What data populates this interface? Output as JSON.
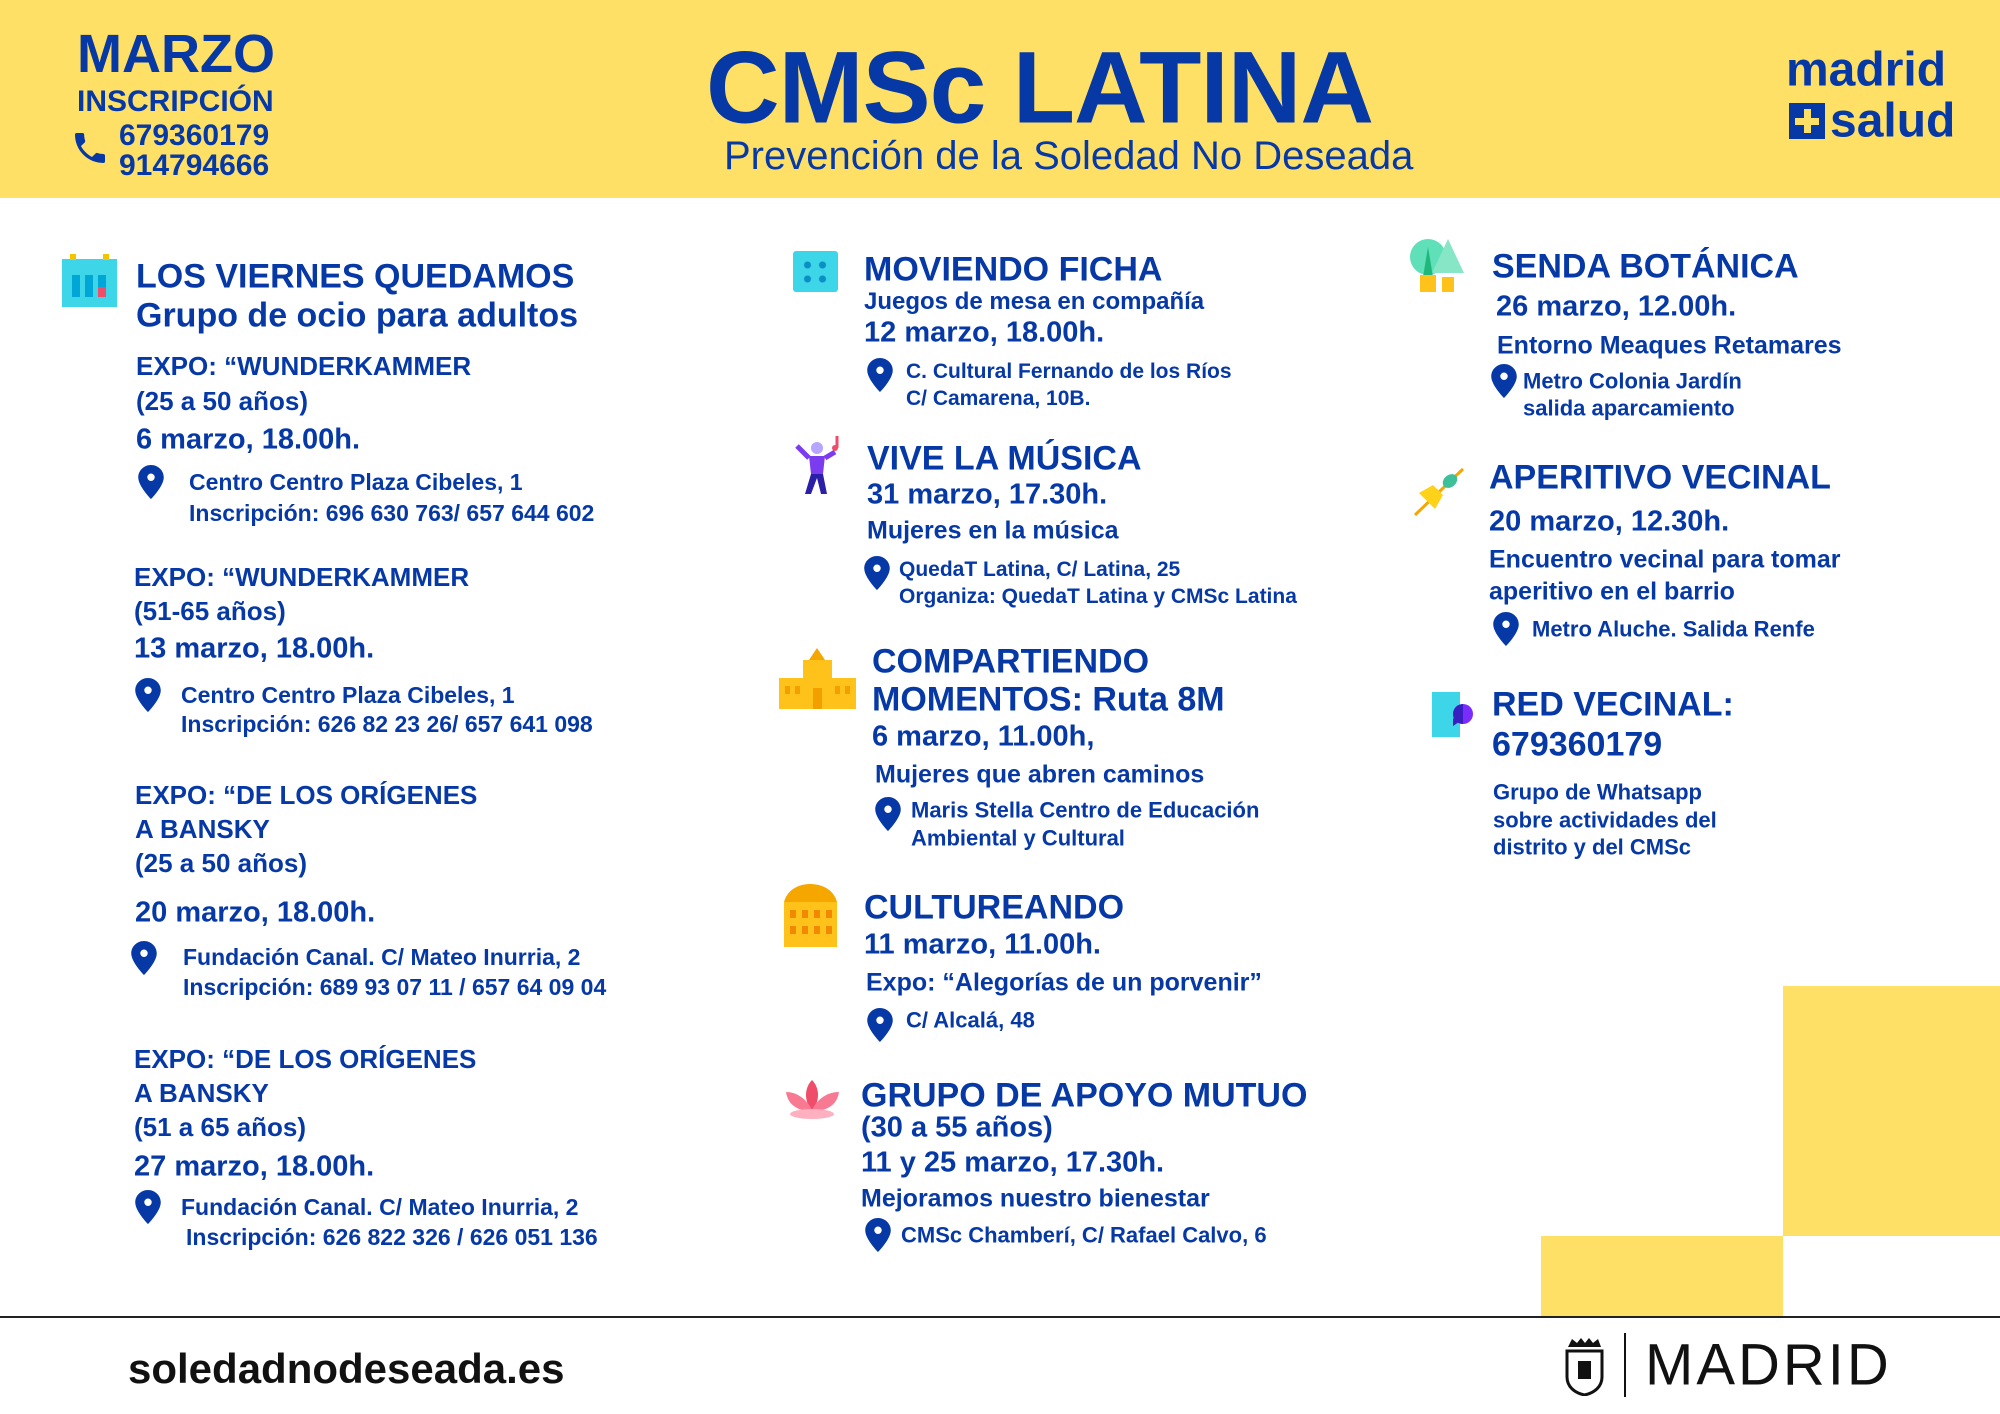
{
  "header": {
    "month": "MARZO",
    "inscription": "INSCRIPCIÓN",
    "phone1": "679360179",
    "phone2": "914794666",
    "title": "CMSc LATINA",
    "subtitle": "Prevención de la Soledad No Deseada",
    "logo_line1": "madrid",
    "logo_line2": "salud"
  },
  "colors": {
    "yellow": "#FFE066",
    "blue": "#0638A6"
  },
  "col1": {
    "title1": "LOS VIERNES QUEDAMOS",
    "title2": "Grupo de ocio para adultos",
    "events": [
      {
        "l1": "EXPO: “WUNDERKAMMER",
        "l2": "(25 a 50 años)",
        "date": "6 marzo, 18.00h.",
        "addr": "Centro Centro Plaza Cibeles, 1",
        "insc": "Inscripción: 696 630 763/ 657 644 602"
      },
      {
        "l1": "EXPO: “WUNDERKAMMER",
        "l2": "(51-65 años)",
        "date": "13 marzo, 18.00h.",
        "addr": "Centro Centro Plaza Cibeles, 1",
        "insc": "Inscripción: 626 82 23 26/ 657 641 098"
      },
      {
        "l1": "EXPO: “DE LOS ORÍGENES",
        "l2": "A BANSKY",
        "l3": "(25 a 50 años)",
        "date": "20 marzo, 18.00h.",
        "addr": "Fundación Canal. C/ Mateo Inurria, 2",
        "insc": "Inscripción: 689 93 07 11 / 657 64 09 04"
      },
      {
        "l1": "EXPO: “DE LOS ORÍGENES",
        "l2": "A BANSKY",
        "l3": "(51 a 65 años)",
        "date": "27 marzo, 18.00h.",
        "addr": "Fundación Canal. C/ Mateo Inurria, 2",
        "insc": "Inscripción: 626 822 326 / 626 051 136"
      }
    ]
  },
  "col2": [
    {
      "title": "MOVIENDO FICHA",
      "sub": "Juegos de mesa en compañía",
      "date": "12 marzo, 18.00h.",
      "addr1": "C. Cultural Fernando de los Ríos",
      "addr2": "C/ Camarena, 10B."
    },
    {
      "title": "VIVE LA MÚSICA",
      "date": "31 marzo, 17.30h.",
      "sub": "Mujeres en la música",
      "addr1": "QuedaT Latina, C/ Latina, 25",
      "addr2": "Organiza: QuedaT Latina y CMSc Latina"
    },
    {
      "title": "COMPARTIENDO",
      "title2": "MOMENTOS: Ruta 8M",
      "date": "6 marzo, 11.00h,",
      "sub": "Mujeres que abren caminos",
      "addr1": "Maris Stella Centro de Educación",
      "addr2": "Ambiental y Cultural"
    },
    {
      "title": "CULTUREANDO",
      "date": "11 marzo, 11.00h.",
      "sub": "Expo: “Alegorías de un porvenir”",
      "addr1": "C/ Alcalá, 48"
    },
    {
      "title": "GRUPO DE APOYO MUTUO",
      "title2": "(30 a 55 años)",
      "date": "11 y 25 marzo, 17.30h.",
      "sub": "Mejoramos nuestro bienestar",
      "addr1": "CMSc Chamberí, C/ Rafael Calvo, 6"
    }
  ],
  "col3": [
    {
      "title": "SENDA BOTÁNICA",
      "date": "26 marzo, 12.00h.",
      "sub": "Entorno Meaques Retamares",
      "addr1": "Metro Colonia Jardín",
      "addr2": "salida aparcamiento"
    },
    {
      "title": "APERITIVO VECINAL",
      "date": "20 marzo, 12.30h.",
      "sub1": "Encuentro vecinal para tomar",
      "sub2": "aperitivo en el barrio",
      "addr1": "Metro Aluche. Salida Renfe"
    },
    {
      "title": "RED VECINAL:",
      "title2": "679360179",
      "l1": "Grupo de Whatsapp",
      "l2": "sobre actividades del",
      "l3": "distrito y del CMSc"
    }
  ],
  "footer": {
    "website": "soledadnodeseada.es",
    "city": "MADRID"
  }
}
